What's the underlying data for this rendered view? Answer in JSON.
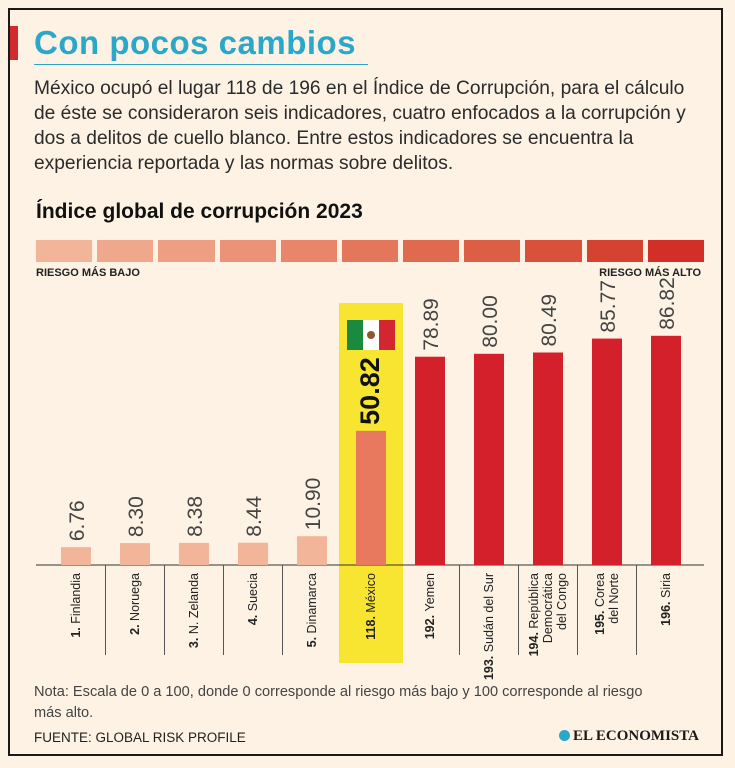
{
  "header": {
    "title": "Con pocos cambios",
    "intro": "México ocupó el lugar 118 de 196 en el Índice de Corrupción, para el cálculo de éste se consideraron seis indicadores, cuatro enfocados a la corrupción y dos a delitos de cuello blanco. Entre estos indicadores se encuentra la experiencia reportada y las normas sobre delitos."
  },
  "scale": {
    "low_label": "RIESGO MÁS BAJO",
    "high_label": "RIESGO MÁS ALTO",
    "colors": [
      "#f3b59a",
      "#f0a88c",
      "#ee9e82",
      "#eb9277",
      "#e8856a",
      "#e4765c",
      "#e06a50",
      "#dc5e45",
      "#d9503b",
      "#d54231",
      "#d12f28"
    ]
  },
  "chart_data": {
    "type": "bar",
    "title": "Índice global de corrupción 2023",
    "ylim": [
      0,
      100
    ],
    "categories": [
      {
        "rank": "1.",
        "name": "Finlandia"
      },
      {
        "rank": "2.",
        "name": "Noruega"
      },
      {
        "rank": "3.",
        "name": "N. Zelanda"
      },
      {
        "rank": "4.",
        "name": "Suecia"
      },
      {
        "rank": "5.",
        "name": "Dinamarca"
      },
      {
        "rank": "118.",
        "name": "México"
      },
      {
        "rank": "192.",
        "name": "Yemen"
      },
      {
        "rank": "193.",
        "name": "Sudán del Sur"
      },
      {
        "rank": "194.",
        "name": "República Democrática del Congo"
      },
      {
        "rank": "195.",
        "name": "Corea del Norte"
      },
      {
        "rank": "196.",
        "name": "Siria"
      }
    ],
    "values": [
      6.76,
      8.3,
      8.38,
      8.44,
      10.9,
      50.82,
      78.89,
      80.0,
      80.49,
      85.77,
      86.82
    ],
    "value_labels": [
      "6.76",
      "8.30",
      "8.38",
      "8.44",
      "10.90",
      "50.82",
      "78.89",
      "80.00",
      "80.49",
      "85.77",
      "86.82"
    ],
    "highlight": "México",
    "colors": {
      "low": "#f3b59a",
      "highlight_bar": "#e8785e",
      "highlight_bg": "#f7e532",
      "high": "#d4202a"
    }
  },
  "footer": {
    "note": "Nota: Escala de 0 a 100, donde 0 corresponde al riesgo más bajo y 100 corresponde al riesgo más alto.",
    "source": "FUENTE: GLOBAL RISK PROFILE",
    "brand": "EL ECONOMISTA"
  }
}
